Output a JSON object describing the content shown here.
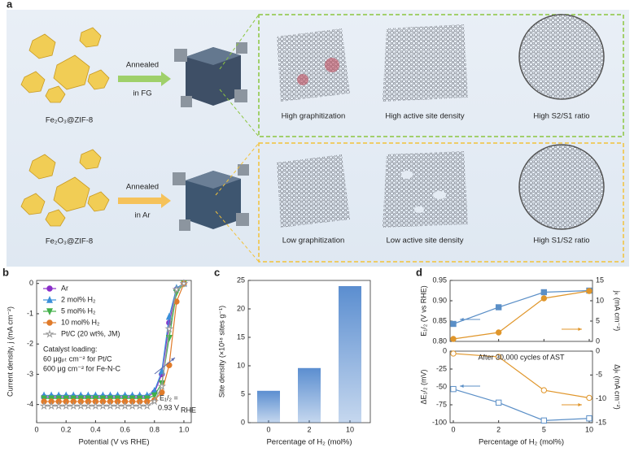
{
  "panel_a": {
    "label": "a",
    "rows": [
      {
        "precursor": "Fe₂O₃@ZIF-8",
        "process": [
          "Annealed",
          "in FG"
        ],
        "results": [
          "High graphitization",
          "High active site density",
          "High S2/S1 ratio"
        ]
      },
      {
        "precursor": "Fe₂O₃@ZIF-8",
        "process": [
          "Annealed",
          "in Ar"
        ],
        "results": [
          "Low graphitization",
          "Low active site density",
          "High S1/S2 ratio"
        ]
      }
    ]
  },
  "chart_data": [
    {
      "type": "line",
      "panel_label": "b",
      "x_label": "Potential (V vs RHE)",
      "y_label": "Current density, j (mA cm⁻²)",
      "xlim": [
        0,
        1.05
      ],
      "xticks": [
        0,
        0.2,
        0.4,
        0.6,
        0.8,
        {
          "value": 1,
          "label": "1.0"
        }
      ],
      "ylim": [
        -4.6,
        0.1
      ],
      "yticks": [
        -4,
        -3,
        -2,
        -1,
        0
      ],
      "x": [
        0.05,
        0.1,
        0.15,
        0.2,
        0.25,
        0.3,
        0.35,
        0.4,
        0.45,
        0.5,
        0.55,
        0.6,
        0.65,
        0.7,
        0.75,
        0.8,
        0.85,
        0.9,
        0.95,
        1.0
      ],
      "series": [
        {
          "name": "Ar",
          "color": "#8a2fc9",
          "marker": "circle",
          "values": [
            -3.75,
            -3.75,
            -3.75,
            -3.75,
            -3.75,
            -3.75,
            -3.75,
            -3.75,
            -3.75,
            -3.75,
            -3.75,
            -3.75,
            -3.75,
            -3.75,
            -3.75,
            -3.6,
            -3.0,
            -1.3,
            -0.2,
            0
          ]
        },
        {
          "name": "2 mol% H₂",
          "color": "#3a8fd9",
          "marker": "triangle",
          "values": [
            -3.7,
            -3.7,
            -3.7,
            -3.7,
            -3.7,
            -3.7,
            -3.7,
            -3.7,
            -3.7,
            -3.7,
            -3.7,
            -3.7,
            -3.7,
            -3.7,
            -3.7,
            -3.55,
            -2.9,
            -1.1,
            -0.15,
            0
          ]
        },
        {
          "name": "5 mol% H₂",
          "color": "#43b04a",
          "marker": "triangle-down",
          "values": [
            -3.8,
            -3.8,
            -3.8,
            -3.8,
            -3.8,
            -3.8,
            -3.8,
            -3.8,
            -3.8,
            -3.8,
            -3.8,
            -3.8,
            -3.8,
            -3.8,
            -3.8,
            -3.7,
            -3.3,
            -1.8,
            -0.3,
            0
          ]
        },
        {
          "name": "10 mol% H₂",
          "color": "#e07b2a",
          "marker": "circle",
          "values": [
            -3.9,
            -3.9,
            -3.9,
            -3.9,
            -3.9,
            -3.9,
            -3.9,
            -3.9,
            -3.9,
            -3.9,
            -3.9,
            -3.9,
            -3.9,
            -3.9,
            -3.9,
            -3.85,
            -3.6,
            -2.7,
            -0.6,
            0
          ]
        },
        {
          "name": "Pt/C (20 wt%, JM)",
          "color": "#9a9a9a",
          "marker": "star",
          "values": [
            -4.05,
            -4.05,
            -4.05,
            -4.05,
            -4.05,
            -4.05,
            -4.05,
            -4.05,
            -4.05,
            -4.05,
            -4.05,
            -4.05,
            -4.05,
            -4.05,
            -4.05,
            -3.9,
            -3.4,
            -1.5,
            -0.2,
            0
          ]
        }
      ],
      "annotations": [
        "Catalyst loading:",
        "60 μgₚₜ cm⁻² for Pt/C",
        "600 μg cm⁻² for Fe-N-C",
        "E₁/₂ =",
        "0.93 V",
        "RHE"
      ]
    },
    {
      "type": "bar",
      "panel_label": "c",
      "x_label": "Percentage of H₂ (mol%)",
      "y_label": "Site density (×10¹⁸ sites g⁻¹)",
      "categories": [
        "0",
        "2",
        "10"
      ],
      "values": [
        5.6,
        9.6,
        24
      ],
      "color": "#5b8ed0",
      "ylim": [
        0,
        25
      ],
      "yticks": [
        0,
        5,
        10,
        15,
        20,
        25
      ]
    },
    {
      "type": "line",
      "panel_label": "d",
      "y_label": "E₁/₂ (V vs RHE)",
      "y2_label": "jₖ (mA cm⁻²)",
      "ylim": [
        0.8,
        0.95
      ],
      "yticks": [
        {
          "value": 0.8,
          "label": "0.80"
        },
        0.85,
        {
          "value": 0.9,
          "label": "0.90"
        },
        0.95
      ],
      "y2lim": [
        0,
        15
      ],
      "y2ticks": [
        0,
        5,
        10,
        15
      ],
      "series": [
        {
          "color": "#5b8fc7",
          "marker": "square",
          "values": [
            0.843,
            0.884,
            0.921,
            0.925
          ]
        },
        {
          "color": "#e0962b",
          "marker": "circle",
          "axis": "y2",
          "values": [
            0.6,
            2.2,
            10.6,
            12.4
          ]
        }
      ]
    },
    {
      "type": "line",
      "x_label": "Percentage of H₂ (mol%)",
      "y_label": "ΔE₁/₂ (mV)",
      "y2_label": "Δjₖ (mA cm⁻²)",
      "categories": [
        "0",
        "2",
        "5",
        "10"
      ],
      "ylim": [
        -100,
        0
      ],
      "yticks": [
        -100,
        -75,
        -50,
        -25,
        0
      ],
      "y2lim": [
        -15,
        0
      ],
      "y2ticks": [
        -15,
        -10,
        -5,
        0
      ],
      "series": [
        {
          "color": "#5b8fc7",
          "marker": "square",
          "hollow": true,
          "values": [
            -53,
            -72,
            -97,
            -94
          ]
        },
        {
          "color": "#e0962b",
          "marker": "circle",
          "hollow": true,
          "axis": "y2",
          "values": [
            -0.5,
            -1.2,
            -8.2,
            -9.8
          ]
        }
      ],
      "annotations": [
        "After 30,000 cycles of AST"
      ]
    }
  ]
}
